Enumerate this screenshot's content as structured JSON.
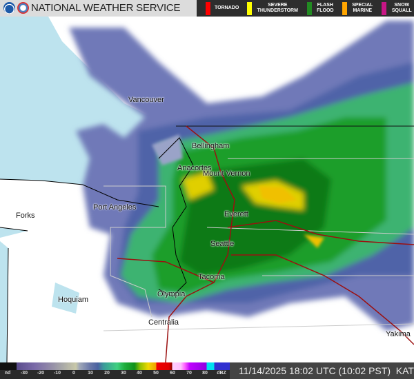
{
  "header": {
    "title": "NATIONAL WEATHER SERVICE",
    "warnings": [
      {
        "label": "TORNADO",
        "color": "#ff0000"
      },
      {
        "label": "SEVERE THUNDERSTORM",
        "color": "#ffff00"
      },
      {
        "label": "FLASH FLOOD",
        "color": "#228b22"
      },
      {
        "label": "SPECIAL MARINE",
        "color": "#ffa500"
      },
      {
        "label": "SNOW SQUALL",
        "color": "#c71585"
      }
    ]
  },
  "map": {
    "cities": [
      "Vancouver",
      "Bellingham",
      "Anacortes",
      "Mount Vernon",
      "Port Angeles",
      "Forks",
      "Everett",
      "Seattle",
      "Tacoma",
      "Olympia",
      "Hoquiam",
      "Centralia",
      "Yakima"
    ],
    "water_color": "#bde3ee",
    "highway_color": "#9b1010"
  },
  "legend": {
    "labels": [
      "nd",
      "-30",
      "-20",
      "-10",
      "0",
      "10",
      "20",
      "30",
      "40",
      "50",
      "60",
      "70",
      "80",
      "dBZ"
    ]
  },
  "footer": {
    "timestamp": "11/14/2025 18:02 UTC (10:02 PST)",
    "station": "KATX"
  }
}
